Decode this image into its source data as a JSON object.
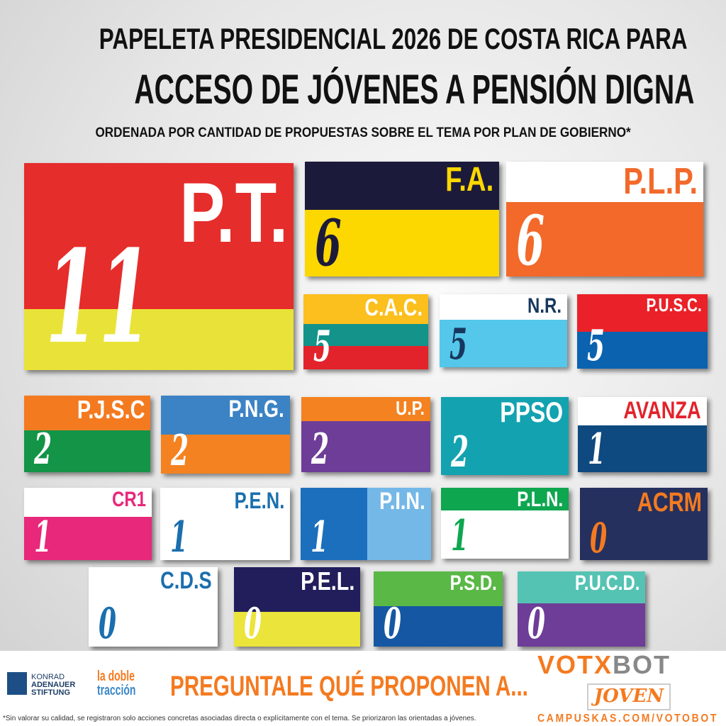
{
  "header": {
    "line1": "PAPELETA PRESIDENCIAL 2026 DE COSTA RICA PARA",
    "line2": "ACCESO DE JÓVENES A PENSIÓN DIGNA",
    "line3": "ORDENADA POR CANTIDAD DE PROPUESTAS SOBRE EL TEMA POR PLAN DE GOBIERNO*"
  },
  "parties": [
    {
      "label": "P.T.",
      "count": 11,
      "stripes": [
        "#e52d2b",
        "#e9e339"
      ],
      "label_color": "#ffffff",
      "count_color": "#ffffff"
    },
    {
      "label": "F.A.",
      "count": 6,
      "stripes": [
        "#1c1a3a",
        "#fcd700"
      ],
      "label_color": "#fcd700",
      "count_color": "#1c1a3a"
    },
    {
      "label": "P.L.P.",
      "count": 6,
      "stripes": [
        "#ffffff",
        "#f2692a"
      ],
      "label_color": "#f2692a",
      "count_color": "#ffffff"
    },
    {
      "label": "C.A.C.",
      "count": 5,
      "stripes": [
        "#fbbf1e",
        "#14938a",
        "#e3232b"
      ],
      "label_color": "#ffffff",
      "count_color": "#ffffff"
    },
    {
      "label": "N.R.",
      "count": 5,
      "stripes": [
        "#ffffff",
        "#54c7ea"
      ],
      "label_color": "#17375e",
      "count_color": "#17375e"
    },
    {
      "label": "P.U.S.C.",
      "count": 5,
      "stripes": [
        "#ea2128",
        "#0b63b0"
      ],
      "label_color": "#ffffff",
      "count_color": "#ffffff"
    },
    {
      "label": "P.J.S.C",
      "count": 2,
      "stripes": [
        "#f47a20",
        "#139447"
      ],
      "label_color": "#ffffff",
      "count_color": "#ffffff"
    },
    {
      "label": "P.N.G.",
      "count": 2,
      "stripes": [
        "#3b83c4",
        "#f48221"
      ],
      "label_color": "#ffffff",
      "count_color": "#ffffff"
    },
    {
      "label": "U.P.",
      "count": 2,
      "stripes": [
        "#f48221",
        "#6e3d97"
      ],
      "label_color": "#ffffff",
      "count_color": "#ffffff"
    },
    {
      "label": "PPSO",
      "count": 2,
      "stripes": [
        "#13a2b0"
      ],
      "label_color": "#ffffff",
      "count_color": "#ffffff"
    },
    {
      "label": "AVANZA",
      "count": 1,
      "stripes": [
        "#ffffff",
        "#0e4a7f"
      ],
      "label_color": "#e3232b",
      "count_color": "#ffffff"
    },
    {
      "label": "CR1",
      "count": 1,
      "stripes": [
        "#ffffff",
        "#e8287b"
      ],
      "label_color": "#e8287b",
      "count_color": "#ffffff"
    },
    {
      "label": "P.E.N.",
      "count": 1,
      "stripes": [
        "#ffffff"
      ],
      "label_color": "#1a6fae",
      "count_color": "#1a6fae"
    },
    {
      "label": "P.I.N.",
      "count": 1,
      "stripes": [
        "#1b6fbd",
        "#74b8e8"
      ],
      "label_color": "#ffffff",
      "count_color": "#ffffff"
    },
    {
      "label": "P.L.N.",
      "count": 1,
      "stripes": [
        "#0fa650",
        "#ffffff"
      ],
      "label_color": "#ffffff",
      "count_color": "#0fa650"
    },
    {
      "label": "ACRM",
      "count": 0,
      "stripes": [
        "#25305e"
      ],
      "label_color": "#f47a20",
      "count_color": "#f47a20"
    },
    {
      "label": "C.D.S",
      "count": 0,
      "stripes": [
        "#ffffff"
      ],
      "label_color": "#1a6fae",
      "count_color": "#1a6fae"
    },
    {
      "label": "P.E.L.",
      "count": 0,
      "stripes": [
        "#221e5c",
        "#ebe43a"
      ],
      "label_color": "#ffffff",
      "count_color": "#ffffff"
    },
    {
      "label": "P.S.D.",
      "count": 0,
      "stripes": [
        "#5ab847",
        "#1557a3"
      ],
      "label_color": "#ffffff",
      "count_color": "#ffffff"
    },
    {
      "label": "P.U.C.D.",
      "count": 0,
      "stripes": [
        "#55c3b3",
        "#6e3d97"
      ],
      "label_color": "#ffffff",
      "count_color": "#ffffff"
    }
  ],
  "footer": {
    "kas": [
      "KONRAD",
      "ADENAUER",
      "STIFTUNG"
    ],
    "ldt": [
      "la doble",
      "tracción"
    ],
    "cta": "PREGUNTALE QUÉ PROPONEN A...",
    "votobot_a": "VOTX",
    "votobot_b": "BOT",
    "joven": "JOVEN",
    "url": "CAMPUSKAS.COM/VOTOBOT",
    "note": "*Sin valorar su calidad, se registraron  solo acciones concretas asociadas directa o explícitamente con el tema. Se priorizaron las orientadas a jóvenes."
  }
}
